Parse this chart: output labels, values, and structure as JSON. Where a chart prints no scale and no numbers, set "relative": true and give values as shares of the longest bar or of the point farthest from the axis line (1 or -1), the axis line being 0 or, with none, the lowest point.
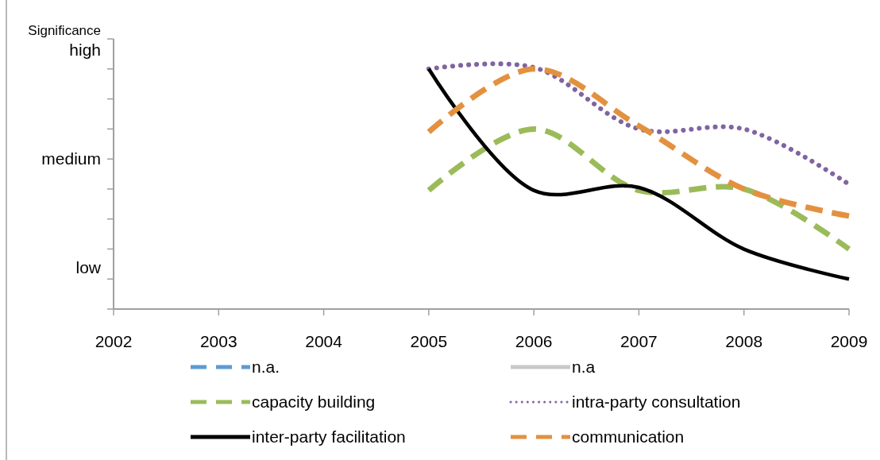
{
  "chart_data": {
    "type": "line",
    "relative": true,
    "ylabel": "Significance",
    "x": [
      2005,
      2006,
      2007,
      2008,
      2009
    ],
    "xlim": [
      2002,
      2009
    ],
    "xticks": [
      2002,
      2003,
      2004,
      2005,
      2006,
      2007,
      2008,
      2009
    ],
    "annotations": [
      "high",
      "medium",
      "low"
    ],
    "legend": "bottom",
    "series": [
      {
        "name": "n.a.",
        "color": "#5b9bd5",
        "line_style": "dashed",
        "values": [
          null,
          null,
          null,
          null,
          null
        ]
      },
      {
        "name": "n.a",
        "color": "#c8c8c8",
        "line_style": "solid",
        "values": [
          null,
          null,
          null,
          null,
          null
        ]
      },
      {
        "name": "capacity building",
        "color": "#9bbb59",
        "line_style": "dashed",
        "values": [
          0.491,
          0.745,
          0.491,
          0.497,
          0.248
        ]
      },
      {
        "name": "intra-party consultation",
        "color": "#8064a2",
        "line_style": "dotted",
        "values": [
          0.994,
          1,
          0.745,
          0.745,
          0.516
        ]
      },
      {
        "name": "inter-party facilitation",
        "color": "#000000",
        "line_style": "solid",
        "values": [
          0.994,
          0.491,
          0.503,
          0.248,
          0.124
        ]
      },
      {
        "name": "communication",
        "color": "#e3913f",
        "line_style": "dashed",
        "values": [
          0.733,
          0.994,
          0.758,
          0.497,
          0.385
        ]
      }
    ]
  }
}
